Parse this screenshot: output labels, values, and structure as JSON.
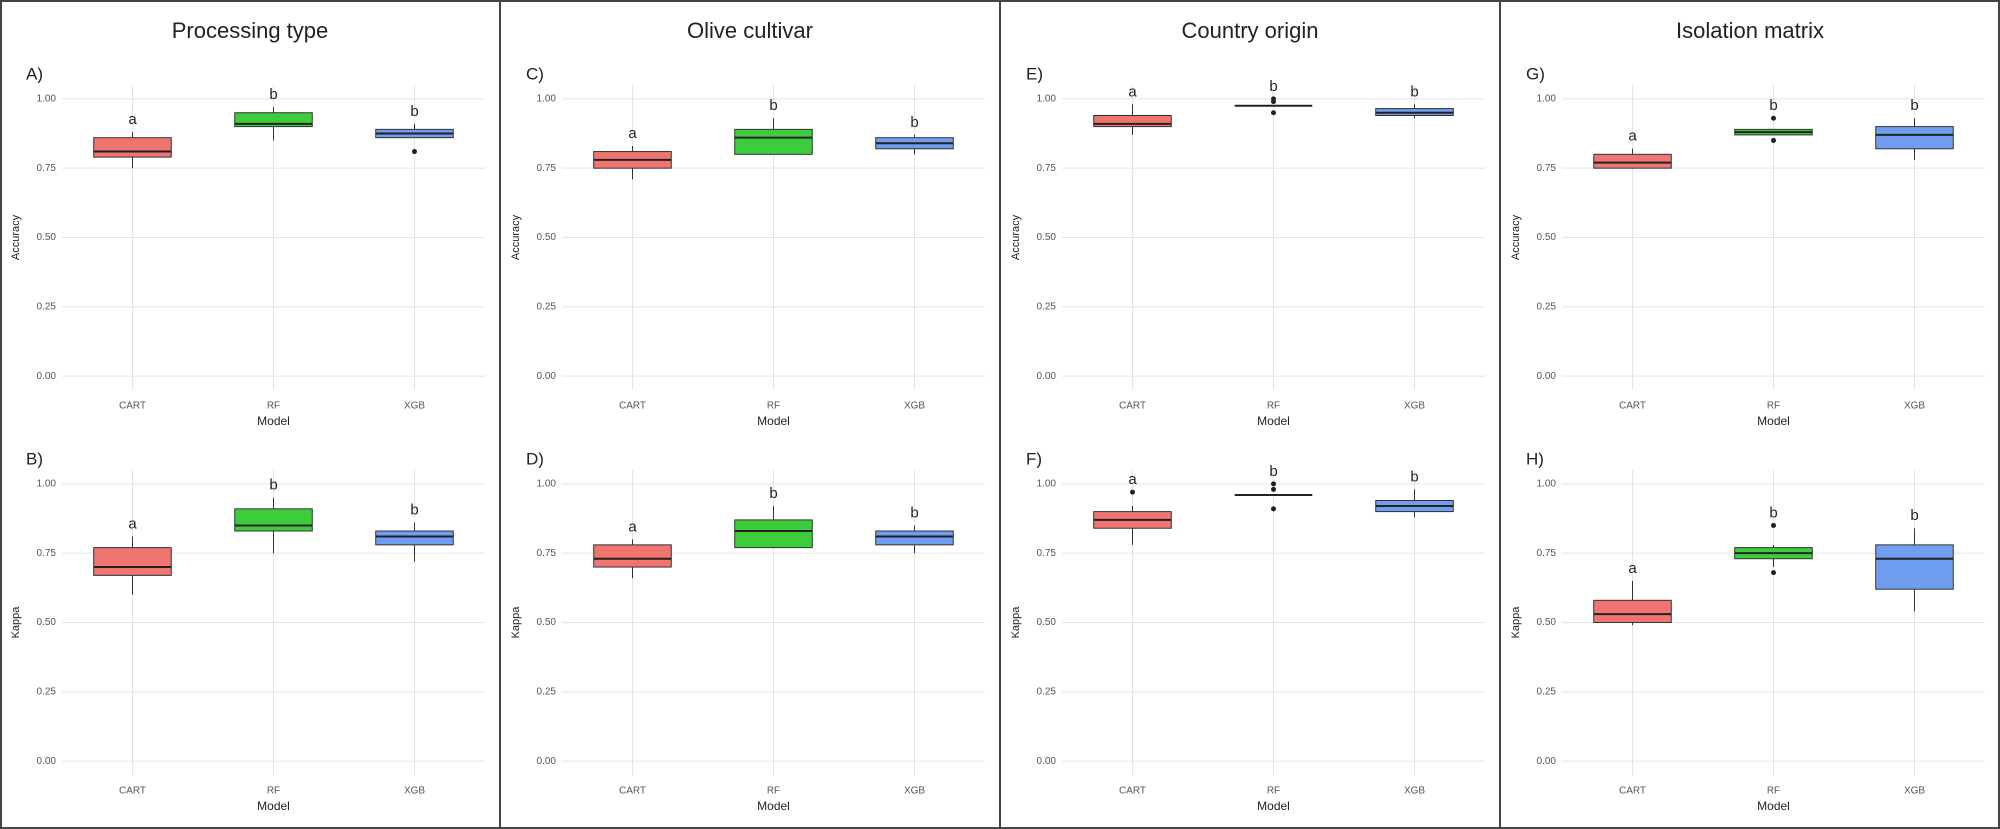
{
  "column_titles": [
    "Processing type",
    "Olive cultivar",
    "Country origin",
    "Isolation matrix"
  ],
  "chart_data": [
    {
      "type": "box",
      "panel": "A)",
      "ylabel": "Accuracy",
      "xlabel": "Model",
      "categories": [
        "CART",
        "RF",
        "XGB"
      ],
      "colors": [
        "#f07470",
        "#3ccc3c",
        "#6f9ef0"
      ],
      "annotations": [
        "a",
        "b",
        "b"
      ],
      "ylim": [
        -0.05,
        1.05
      ],
      "grid": true,
      "yticks": [
        {
          "value": 0,
          "label": "0.00"
        },
        {
          "value": 0.25,
          "label": "0.25"
        },
        {
          "value": 0.5,
          "label": "0.50"
        },
        {
          "value": 0.75,
          "label": "0.75"
        },
        {
          "value": 1,
          "label": "1.00"
        }
      ],
      "stats": [
        {
          "whisker_low": 0.75,
          "q1": 0.79,
          "median": 0.81,
          "q3": 0.86,
          "whisker_high": 0.88,
          "outliers": []
        },
        {
          "whisker_low": 0.85,
          "q1": 0.9,
          "median": 0.91,
          "q3": 0.95,
          "whisker_high": 0.97,
          "outliers": []
        },
        {
          "whisker_low": 0.86,
          "q1": 0.86,
          "median": 0.875,
          "q3": 0.89,
          "whisker_high": 0.91,
          "outliers": [
            0.81
          ]
        }
      ]
    },
    {
      "type": "box",
      "panel": "B)",
      "ylabel": "Kappa",
      "xlabel": "Model",
      "categories": [
        "CART",
        "RF",
        "XGB"
      ],
      "colors": [
        "#f07470",
        "#3ccc3c",
        "#6f9ef0"
      ],
      "annotations": [
        "a",
        "b",
        "b"
      ],
      "ylim": [
        -0.05,
        1.05
      ],
      "grid": true,
      "yticks": [
        {
          "value": 0,
          "label": "0.00"
        },
        {
          "value": 0.25,
          "label": "0.25"
        },
        {
          "value": 0.5,
          "label": "0.50"
        },
        {
          "value": 0.75,
          "label": "0.75"
        },
        {
          "value": 1,
          "label": "1.00"
        }
      ],
      "stats": [
        {
          "whisker_low": 0.6,
          "q1": 0.67,
          "median": 0.7,
          "q3": 0.77,
          "whisker_high": 0.81,
          "outliers": []
        },
        {
          "whisker_low": 0.75,
          "q1": 0.83,
          "median": 0.85,
          "q3": 0.91,
          "whisker_high": 0.95,
          "outliers": []
        },
        {
          "whisker_low": 0.72,
          "q1": 0.78,
          "median": 0.81,
          "q3": 0.83,
          "whisker_high": 0.86,
          "outliers": []
        }
      ]
    },
    {
      "type": "box",
      "panel": "C)",
      "ylabel": "Accuracy",
      "xlabel": "Model",
      "categories": [
        "CART",
        "RF",
        "XGB"
      ],
      "colors": [
        "#f07470",
        "#3ccc3c",
        "#6f9ef0"
      ],
      "annotations": [
        "a",
        "b",
        "b"
      ],
      "ylim": [
        -0.05,
        1.05
      ],
      "grid": true,
      "yticks": [
        {
          "value": 0,
          "label": "0.00"
        },
        {
          "value": 0.25,
          "label": "0.25"
        },
        {
          "value": 0.5,
          "label": "0.50"
        },
        {
          "value": 0.75,
          "label": "0.75"
        },
        {
          "value": 1,
          "label": "1.00"
        }
      ],
      "stats": [
        {
          "whisker_low": 0.71,
          "q1": 0.75,
          "median": 0.78,
          "q3": 0.81,
          "whisker_high": 0.83,
          "outliers": []
        },
        {
          "whisker_low": 0.8,
          "q1": 0.8,
          "median": 0.86,
          "q3": 0.89,
          "whisker_high": 0.93,
          "outliers": []
        },
        {
          "whisker_low": 0.8,
          "q1": 0.82,
          "median": 0.84,
          "q3": 0.86,
          "whisker_high": 0.87,
          "outliers": []
        }
      ]
    },
    {
      "type": "box",
      "panel": "D)",
      "ylabel": "Kappa",
      "xlabel": "Model",
      "categories": [
        "CART",
        "RF",
        "XGB"
      ],
      "colors": [
        "#f07470",
        "#3ccc3c",
        "#6f9ef0"
      ],
      "annotations": [
        "a",
        "b",
        "b"
      ],
      "ylim": [
        -0.05,
        1.05
      ],
      "grid": true,
      "yticks": [
        {
          "value": 0,
          "label": "0.00"
        },
        {
          "value": 0.25,
          "label": "0.25"
        },
        {
          "value": 0.5,
          "label": "0.50"
        },
        {
          "value": 0.75,
          "label": "0.75"
        },
        {
          "value": 1,
          "label": "1.00"
        }
      ],
      "stats": [
        {
          "whisker_low": 0.66,
          "q1": 0.7,
          "median": 0.73,
          "q3": 0.78,
          "whisker_high": 0.8,
          "outliers": []
        },
        {
          "whisker_low": 0.77,
          "q1": 0.77,
          "median": 0.83,
          "q3": 0.87,
          "whisker_high": 0.92,
          "outliers": []
        },
        {
          "whisker_low": 0.75,
          "q1": 0.78,
          "median": 0.81,
          "q3": 0.83,
          "whisker_high": 0.85,
          "outliers": []
        }
      ]
    },
    {
      "type": "box",
      "panel": "E)",
      "ylabel": "Accuracy",
      "xlabel": "Model",
      "categories": [
        "CART",
        "RF",
        "XGB"
      ],
      "colors": [
        "#f07470",
        "#3ccc3c",
        "#6f9ef0"
      ],
      "annotations": [
        "a",
        "b",
        "b"
      ],
      "ylim": [
        -0.05,
        1.05
      ],
      "grid": true,
      "yticks": [
        {
          "value": 0,
          "label": "0.00"
        },
        {
          "value": 0.25,
          "label": "0.25"
        },
        {
          "value": 0.5,
          "label": "0.50"
        },
        {
          "value": 0.75,
          "label": "0.75"
        },
        {
          "value": 1,
          "label": "1.00"
        }
      ],
      "stats": [
        {
          "whisker_low": 0.87,
          "q1": 0.9,
          "median": 0.91,
          "q3": 0.94,
          "whisker_high": 0.98,
          "outliers": []
        },
        {
          "whisker_low": 0.975,
          "q1": 0.975,
          "median": 0.975,
          "q3": 0.975,
          "whisker_high": 0.975,
          "outliers": [
            0.99,
            1,
            0.95
          ]
        },
        {
          "whisker_low": 0.93,
          "q1": 0.94,
          "median": 0.95,
          "q3": 0.965,
          "whisker_high": 0.98,
          "outliers": []
        }
      ]
    },
    {
      "type": "box",
      "panel": "F)",
      "ylabel": "Kappa",
      "xlabel": "Model",
      "categories": [
        "CART",
        "RF",
        "XGB"
      ],
      "colors": [
        "#f07470",
        "#3ccc3c",
        "#6f9ef0"
      ],
      "annotations": [
        "a",
        "b",
        "b"
      ],
      "ylim": [
        -0.05,
        1.05
      ],
      "grid": true,
      "yticks": [
        {
          "value": 0,
          "label": "0.00"
        },
        {
          "value": 0.25,
          "label": "0.25"
        },
        {
          "value": 0.5,
          "label": "0.50"
        },
        {
          "value": 0.75,
          "label": "0.75"
        },
        {
          "value": 1,
          "label": "1.00"
        }
      ],
      "stats": [
        {
          "whisker_low": 0.78,
          "q1": 0.84,
          "median": 0.87,
          "q3": 0.9,
          "whisker_high": 0.92,
          "outliers": [
            0.97
          ]
        },
        {
          "whisker_low": 0.96,
          "q1": 0.96,
          "median": 0.96,
          "q3": 0.96,
          "whisker_high": 0.96,
          "outliers": [
            0.98,
            1,
            0.91
          ]
        },
        {
          "whisker_low": 0.88,
          "q1": 0.9,
          "median": 0.92,
          "q3": 0.94,
          "whisker_high": 0.98,
          "outliers": []
        }
      ]
    },
    {
      "type": "box",
      "panel": "G)",
      "ylabel": "Accuracy",
      "xlabel": "Model",
      "categories": [
        "CART",
        "RF",
        "XGB"
      ],
      "colors": [
        "#f07470",
        "#3ccc3c",
        "#6f9ef0"
      ],
      "annotations": [
        "a",
        "b",
        "b"
      ],
      "ylim": [
        -0.05,
        1.05
      ],
      "grid": true,
      "yticks": [
        {
          "value": 0,
          "label": "0.00"
        },
        {
          "value": 0.25,
          "label": "0.25"
        },
        {
          "value": 0.5,
          "label": "0.50"
        },
        {
          "value": 0.75,
          "label": "0.75"
        },
        {
          "value": 1,
          "label": "1.00"
        }
      ],
      "stats": [
        {
          "whisker_low": 0.75,
          "q1": 0.75,
          "median": 0.77,
          "q3": 0.8,
          "whisker_high": 0.82,
          "outliers": []
        },
        {
          "whisker_low": 0.87,
          "q1": 0.87,
          "median": 0.88,
          "q3": 0.89,
          "whisker_high": 0.89,
          "outliers": [
            0.93,
            0.85
          ]
        },
        {
          "whisker_low": 0.78,
          "q1": 0.82,
          "median": 0.87,
          "q3": 0.9,
          "whisker_high": 0.93,
          "outliers": []
        }
      ]
    },
    {
      "type": "box",
      "panel": "H)",
      "ylabel": "Kappa",
      "xlabel": "Model",
      "categories": [
        "CART",
        "RF",
        "XGB"
      ],
      "colors": [
        "#f07470",
        "#3ccc3c",
        "#6f9ef0"
      ],
      "annotations": [
        "a",
        "b",
        "b"
      ],
      "ylim": [
        -0.05,
        1.05
      ],
      "grid": true,
      "yticks": [
        {
          "value": 0,
          "label": "0.00"
        },
        {
          "value": 0.25,
          "label": "0.25"
        },
        {
          "value": 0.5,
          "label": "0.50"
        },
        {
          "value": 0.75,
          "label": "0.75"
        },
        {
          "value": 1,
          "label": "1.00"
        }
      ],
      "stats": [
        {
          "whisker_low": 0.49,
          "q1": 0.5,
          "median": 0.53,
          "q3": 0.58,
          "whisker_high": 0.65,
          "outliers": []
        },
        {
          "whisker_low": 0.7,
          "q1": 0.73,
          "median": 0.75,
          "q3": 0.77,
          "whisker_high": 0.78,
          "outliers": [
            0.85,
            0.68
          ]
        },
        {
          "whisker_low": 0.54,
          "q1": 0.62,
          "median": 0.73,
          "q3": 0.78,
          "whisker_high": 0.84,
          "outliers": []
        }
      ]
    }
  ]
}
